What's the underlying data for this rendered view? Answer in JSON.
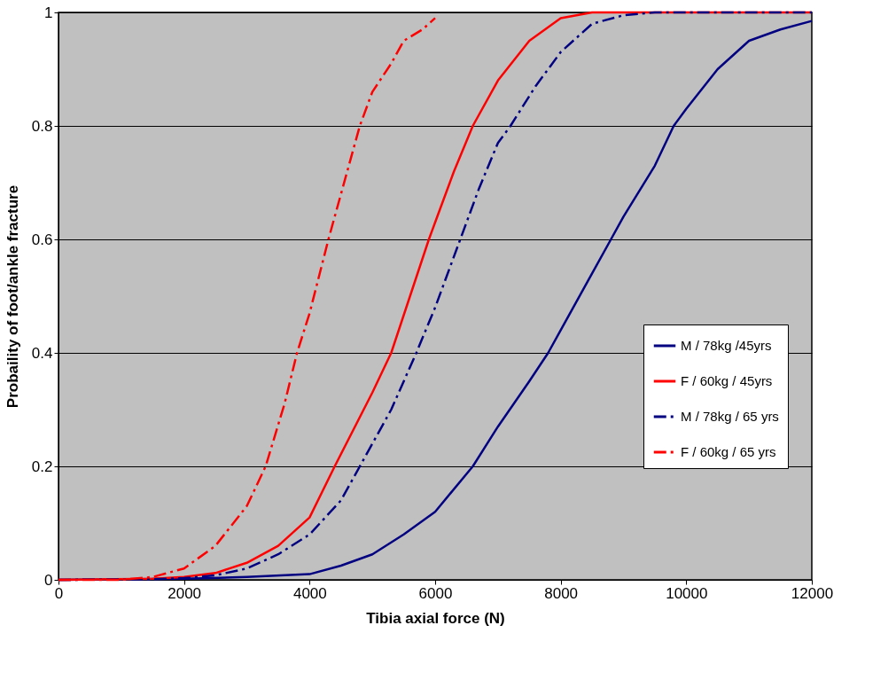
{
  "chart_data": {
    "type": "line",
    "xlabel": "Tibia axial force (N)",
    "ylabel": "Probaility of foot/ankle fracture",
    "xlim": [
      0,
      12000
    ],
    "xticks": [
      0,
      2000,
      4000,
      6000,
      8000,
      10000,
      12000
    ],
    "ylim": [
      0,
      1
    ],
    "yticks": [
      0,
      0.2,
      0.4,
      0.6,
      0.8,
      1
    ],
    "grid": "y",
    "legend": "right",
    "series": [
      {
        "name": "M / 78kg /45yrs",
        "color": "#000080",
        "line_style": "solid",
        "x": [
          0,
          2000,
          3000,
          4000,
          4500,
          5000,
          5500,
          6000,
          6600,
          7000,
          7500,
          7800,
          8000,
          8500,
          8800,
          9000,
          9500,
          9800,
          10000,
          10500,
          11000,
          11500,
          12000
        ],
        "values": [
          0,
          0.002,
          0.005,
          0.01,
          0.025,
          0.045,
          0.08,
          0.12,
          0.2,
          0.27,
          0.35,
          0.4,
          0.44,
          0.54,
          0.6,
          0.64,
          0.73,
          0.8,
          0.83,
          0.9,
          0.95,
          0.97,
          0.985
        ]
      },
      {
        "name": "F / 60kg / 45yrs",
        "color": "#ff0000",
        "line_style": "solid",
        "x": [
          0,
          1500,
          2000,
          2500,
          3000,
          3500,
          4000,
          4400,
          5000,
          5300,
          5600,
          5900,
          6000,
          6300,
          6600,
          7000,
          7500,
          8000,
          8500,
          9000,
          10000,
          11000,
          12000
        ],
        "values": [
          0,
          0.002,
          0.005,
          0.012,
          0.03,
          0.06,
          0.11,
          0.2,
          0.33,
          0.4,
          0.5,
          0.6,
          0.63,
          0.72,
          0.8,
          0.88,
          0.95,
          0.99,
          1,
          1,
          1,
          1,
          1
        ]
      },
      {
        "name": "M / 78kg / 65 yrs",
        "color": "#000080",
        "line_style": "dashed",
        "x": [
          0,
          1500,
          2000,
          2500,
          3000,
          3500,
          4000,
          4500,
          4800,
          5300,
          5700,
          6000,
          6400,
          6700,
          7000,
          7200,
          7600,
          8000,
          8500,
          9000,
          9500,
          10000,
          11000,
          12000
        ],
        "values": [
          0,
          0.001,
          0.003,
          0.008,
          0.02,
          0.045,
          0.08,
          0.14,
          0.2,
          0.3,
          0.4,
          0.48,
          0.6,
          0.69,
          0.77,
          0.8,
          0.87,
          0.93,
          0.98,
          0.995,
          1,
          1,
          1,
          1
        ]
      },
      {
        "name": "F / 60kg / 65 yrs",
        "color": "#ff0000",
        "line_style": "dashed",
        "x": [
          0,
          1000,
          1500,
          2000,
          2500,
          3000,
          3300,
          3600,
          3800,
          4000,
          4300,
          4500,
          4800,
          5000,
          5300,
          5500,
          5800,
          6000
        ],
        "values": [
          0,
          0,
          0.005,
          0.02,
          0.06,
          0.13,
          0.2,
          0.31,
          0.4,
          0.47,
          0.6,
          0.68,
          0.8,
          0.86,
          0.91,
          0.95,
          0.97,
          0.99
        ]
      }
    ]
  }
}
